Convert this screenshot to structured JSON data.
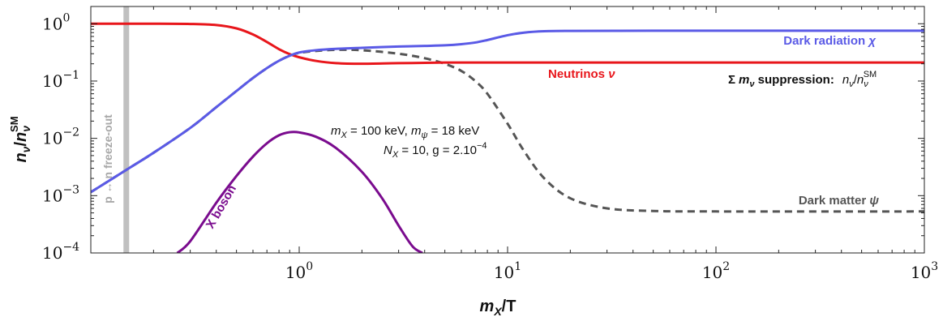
{
  "chart_data": {
    "type": "line",
    "x_scale": "log",
    "y_scale": "log",
    "xlim": [
      0.1,
      1000
    ],
    "ylim": [
      0.0001,
      2
    ],
    "x_ticks": [
      {
        "value": 1,
        "base": "10",
        "exp": "0"
      },
      {
        "value": 10,
        "base": "10",
        "exp": "1"
      },
      {
        "value": 100,
        "base": "10",
        "exp": "2"
      },
      {
        "value": 1000,
        "base": "10",
        "exp": "3"
      }
    ],
    "y_ticks": [
      {
        "value": 1,
        "base": "10",
        "exp": "0"
      },
      {
        "value": 0.1,
        "base": "10",
        "exp": "−1"
      },
      {
        "value": 0.01,
        "base": "10",
        "exp": "−2"
      },
      {
        "value": 0.001,
        "base": "10",
        "exp": "−3"
      },
      {
        "value": 0.0001,
        "base": "10",
        "exp": "−4"
      }
    ],
    "xlabel": {
      "m": "m",
      "sub": "X",
      "rest": "/T"
    },
    "ylabel": {
      "n1": "n",
      "sub1": "ν",
      "slash": "/",
      "n2": "n",
      "sub2": "ν",
      "sup2": "SM"
    },
    "freeze_out": {
      "x": 0.148,
      "label": "p ↔ n freeze-out",
      "color": "#c0c0c0"
    },
    "parameters": {
      "line1": "m_X = 100 keV, m_ψ = 18 keV",
      "line1_parts": {
        "a": "m",
        "a_sub": "X",
        "a_rest": " = 100 keV, ",
        "b": "m",
        "b_sub": "ψ",
        "b_rest": " = 18 keV"
      },
      "line2": "N_X = 10, g = 2.10^−4",
      "line2_parts": {
        "a": "N",
        "a_sub": "X",
        "a_rest": " = 10, g = 2.10",
        "sup": "−4"
      }
    },
    "series": [
      {
        "name": "Dark radiation χ",
        "color": "#5a5ae6",
        "style": "solid",
        "x": [
          0.1,
          0.15,
          0.2,
          0.3,
          0.4,
          0.5,
          0.6,
          0.7,
          0.8,
          0.9,
          1.0,
          1.2,
          1.5,
          2,
          3,
          4,
          5,
          6,
          7,
          8,
          10,
          12,
          15,
          20,
          50,
          100,
          1000
        ],
        "y": [
          0.00115,
          0.0029,
          0.0056,
          0.0152,
          0.035,
          0.067,
          0.113,
          0.168,
          0.226,
          0.276,
          0.315,
          0.345,
          0.365,
          0.38,
          0.4,
          0.41,
          0.42,
          0.44,
          0.47,
          0.52,
          0.63,
          0.7,
          0.74,
          0.75,
          0.755,
          0.755,
          0.755
        ]
      },
      {
        "name": "Neutrinos ν",
        "color": "#e8161b",
        "style": "solid",
        "x": [
          0.1,
          0.2,
          0.3,
          0.4,
          0.5,
          0.6,
          0.7,
          0.8,
          0.9,
          1.0,
          1.2,
          1.5,
          2,
          3,
          5,
          10,
          100,
          1000
        ],
        "y": [
          1.0,
          1.0,
          0.99,
          0.95,
          0.83,
          0.65,
          0.48,
          0.36,
          0.295,
          0.26,
          0.225,
          0.205,
          0.2,
          0.205,
          0.21,
          0.21,
          0.21,
          0.21
        ]
      },
      {
        "name": "Dark matter ψ",
        "color": "#555555",
        "style": "dashed",
        "x": [
          0.1,
          0.15,
          0.2,
          0.3,
          0.4,
          0.5,
          0.6,
          0.7,
          0.8,
          0.9,
          1.0,
          1.2,
          1.5,
          2,
          3,
          4,
          5,
          6,
          7,
          8,
          10,
          12,
          15,
          20,
          30,
          50,
          100,
          1000
        ],
        "y": [
          0.00115,
          0.0029,
          0.0056,
          0.0152,
          0.035,
          0.067,
          0.113,
          0.168,
          0.226,
          0.276,
          0.31,
          0.335,
          0.35,
          0.345,
          0.3,
          0.25,
          0.2,
          0.15,
          0.1,
          0.06,
          0.018,
          0.006,
          0.002,
          0.0009,
          0.0006,
          0.00054,
          0.00053,
          0.00053
        ]
      },
      {
        "name": "X boson",
        "color": "#7a0b8e",
        "style": "solid",
        "x": [
          0.26,
          0.3,
          0.4,
          0.5,
          0.6,
          0.7,
          0.8,
          0.9,
          1.0,
          1.2,
          1.5,
          2,
          2.5,
          3,
          3.5,
          3.9
        ],
        "y": [
          0.0001,
          0.00016,
          0.00075,
          0.0022,
          0.0048,
          0.0082,
          0.0113,
          0.0128,
          0.0127,
          0.0107,
          0.0068,
          0.0026,
          0.0009,
          0.0003,
          0.00013,
          0.0001
        ]
      }
    ],
    "annotations": {
      "dark_radiation": {
        "text": "Dark radiation ",
        "sym": "χ",
        "color": "#5a5ae6"
      },
      "neutrinos": {
        "text": "Neutrinos ",
        "sym": "ν",
        "color": "#e8161b"
      },
      "dark_matter": {
        "text": "Dark matter ",
        "sym": "ψ",
        "color": "#555555"
      },
      "x_boson": {
        "text": "X boson",
        "color": "#7a0b8e"
      },
      "suppression": {
        "sigma": "Σ",
        "m": "m",
        "sub": "ν",
        "rest": " suppression:",
        "n1": "n",
        "sub1": "ν",
        "slash": "/",
        "n2": "n",
        "sub2": "ν",
        "sup2": "SM",
        "color": "#111111"
      }
    }
  }
}
